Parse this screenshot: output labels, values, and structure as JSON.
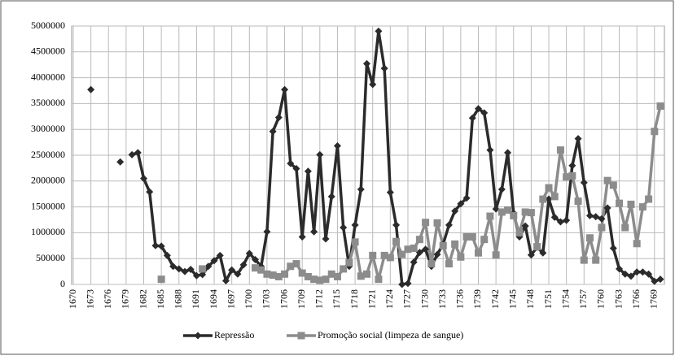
{
  "chart_data": {
    "type": "line",
    "x": [
      1670,
      1671,
      1672,
      1673,
      1674,
      1675,
      1676,
      1677,
      1678,
      1679,
      1680,
      1681,
      1682,
      1683,
      1684,
      1685,
      1686,
      1687,
      1688,
      1689,
      1690,
      1691,
      1692,
      1693,
      1694,
      1695,
      1696,
      1697,
      1698,
      1699,
      1700,
      1701,
      1702,
      1703,
      1704,
      1705,
      1706,
      1707,
      1708,
      1709,
      1710,
      1711,
      1712,
      1713,
      1714,
      1715,
      1716,
      1717,
      1718,
      1719,
      1720,
      1721,
      1722,
      1723,
      1724,
      1725,
      1726,
      1727,
      1728,
      1729,
      1730,
      1731,
      1732,
      1733,
      1734,
      1735,
      1736,
      1737,
      1738,
      1739,
      1740,
      1741,
      1742,
      1743,
      1744,
      1745,
      1746,
      1747,
      1748,
      1749,
      1750,
      1751,
      1752,
      1753,
      1754,
      1755,
      1756,
      1757,
      1758,
      1759,
      1760,
      1761,
      1762,
      1763,
      1764,
      1765,
      1766,
      1767,
      1768,
      1769,
      1770
    ],
    "series": [
      {
        "name": "Repressão",
        "color": "#2b2b2b",
        "marker": "diamond",
        "values": [
          null,
          null,
          null,
          3770000,
          null,
          null,
          null,
          null,
          2370000,
          null,
          2510000,
          2550000,
          2050000,
          1790000,
          750000,
          740000,
          560000,
          350000,
          300000,
          250000,
          290000,
          170000,
          190000,
          350000,
          460000,
          560000,
          70000,
          280000,
          200000,
          380000,
          600000,
          480000,
          350000,
          1020000,
          2960000,
          3230000,
          3770000,
          2340000,
          2240000,
          920000,
          2190000,
          1020000,
          2510000,
          880000,
          1700000,
          2680000,
          1100000,
          350000,
          1150000,
          1840000,
          4270000,
          3870000,
          4900000,
          4180000,
          1780000,
          1150000,
          0,
          20000,
          430000,
          620000,
          680000,
          350000,
          580000,
          780000,
          1150000,
          1420000,
          1560000,
          1670000,
          3220000,
          3400000,
          3320000,
          2600000,
          1460000,
          1840000,
          2550000,
          1380000,
          920000,
          1130000,
          570000,
          720000,
          610000,
          1650000,
          1300000,
          1210000,
          1240000,
          2300000,
          2820000,
          1970000,
          1330000,
          1310000,
          1270000,
          1480000,
          700000,
          300000,
          200000,
          160000,
          240000,
          240000,
          200000,
          60000,
          100000
        ]
      },
      {
        "name": "Promoção social (limpeza de sangue)",
        "color": "#8c8c8c",
        "marker": "square",
        "values": [
          null,
          null,
          null,
          null,
          null,
          null,
          null,
          null,
          null,
          null,
          null,
          null,
          null,
          null,
          null,
          100000,
          null,
          null,
          null,
          null,
          null,
          null,
          300000,
          null,
          null,
          null,
          null,
          null,
          null,
          null,
          null,
          320000,
          280000,
          200000,
          180000,
          150000,
          200000,
          350000,
          400000,
          220000,
          150000,
          100000,
          80000,
          100000,
          200000,
          150000,
          300000,
          420000,
          820000,
          160000,
          200000,
          560000,
          100000,
          560000,
          520000,
          830000,
          580000,
          680000,
          700000,
          870000,
          1200000,
          400000,
          1190000,
          750000,
          400000,
          780000,
          530000,
          920000,
          920000,
          610000,
          870000,
          1320000,
          570000,
          1400000,
          1440000,
          1330000,
          1000000,
          1400000,
          1390000,
          730000,
          1650000,
          1870000,
          1700000,
          2600000,
          2080000,
          2100000,
          1610000,
          470000,
          900000,
          470000,
          1100000,
          2010000,
          1920000,
          1570000,
          1100000,
          1550000,
          790000,
          1500000,
          1650000,
          2960000,
          3450000
        ]
      }
    ],
    "xlim": [
      1670,
      1770
    ],
    "xticks": [
      1670,
      1673,
      1676,
      1679,
      1682,
      1685,
      1688,
      1691,
      1694,
      1697,
      1700,
      1703,
      1706,
      1709,
      1712,
      1715,
      1718,
      1721,
      1724,
      1727,
      1730,
      1733,
      1736,
      1739,
      1742,
      1745,
      1748,
      1751,
      1754,
      1757,
      1760,
      1763,
      1766,
      1769
    ],
    "ylim": [
      0,
      5000000
    ],
    "yticks": [
      0,
      500000,
      1000000,
      1500000,
      2000000,
      2500000,
      3000000,
      3500000,
      4000000,
      4500000,
      5000000
    ],
    "grid": true,
    "legend": "bottom"
  }
}
